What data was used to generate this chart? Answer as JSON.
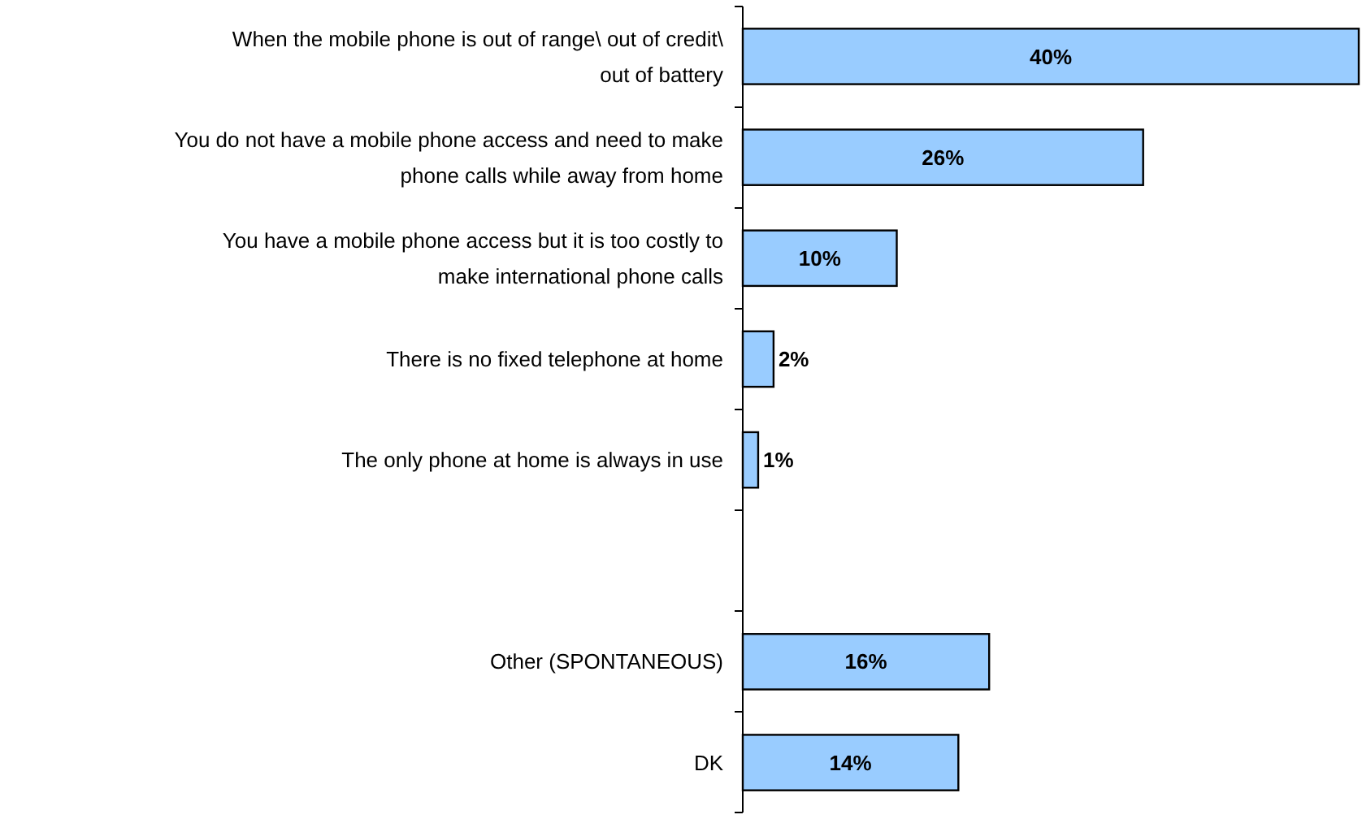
{
  "chart_data": {
    "type": "bar",
    "orientation": "horizontal",
    "categories": [
      "When the mobile phone is out of range\\ out of credit\\ out of battery",
      "You do not have a mobile phone access and need to make phone calls while away from home",
      "You have a mobile phone access but it is too costly to make international phone calls",
      "There is no fixed telephone at home",
      "The only phone at home is always in use",
      null,
      "Other (SPONTANEOUS)",
      "DK"
    ],
    "values": [
      40,
      26,
      10,
      2,
      1,
      null,
      16,
      14
    ],
    "value_labels": [
      "40%",
      "26%",
      "10%",
      "2%",
      "1%",
      null,
      "16%",
      "14%"
    ],
    "color": "#99ccff"
  }
}
